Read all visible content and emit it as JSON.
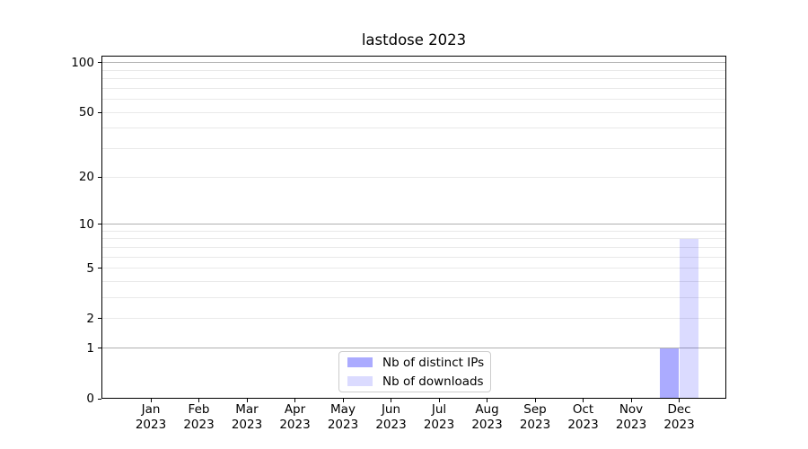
{
  "chart_data": {
    "type": "bar",
    "title": "lastdose 2023",
    "categories": [
      "Jan 2023",
      "Feb 2023",
      "Mar 2023",
      "Apr 2023",
      "May 2023",
      "Jun 2023",
      "Jul 2023",
      "Aug 2023",
      "Sep 2023",
      "Oct 2023",
      "Nov 2023",
      "Dec 2023"
    ],
    "series": [
      {
        "name": "Nb of distinct IPs",
        "color": "#0000ff",
        "alpha": 0.33,
        "values": [
          0,
          0,
          0,
          0,
          0,
          0,
          0,
          0,
          0,
          0,
          0,
          1
        ]
      },
      {
        "name": "Nb of downloads",
        "color": "#0000ff",
        "alpha": 0.14,
        "values": [
          0,
          0,
          0,
          0,
          0,
          0,
          0,
          0,
          0,
          0,
          0,
          8
        ]
      }
    ],
    "xlabel": "",
    "ylabel": "",
    "y_scale": "log10(1+v)",
    "ylim": [
      0,
      110
    ],
    "y_ticks": [
      0,
      1,
      2,
      5,
      10,
      20,
      50,
      100
    ],
    "grid": {
      "major_lines": [
        1,
        10,
        100
      ],
      "minor_lines": [
        2,
        3,
        4,
        5,
        6,
        7,
        8,
        9,
        20,
        30,
        40,
        50,
        60,
        70,
        80,
        90
      ],
      "major_color": "#b0b0b0",
      "minor_color": "#e9e9e9"
    },
    "legend_position": "lower center",
    "axis_color": "#000000",
    "background_color": "#ffffff"
  }
}
